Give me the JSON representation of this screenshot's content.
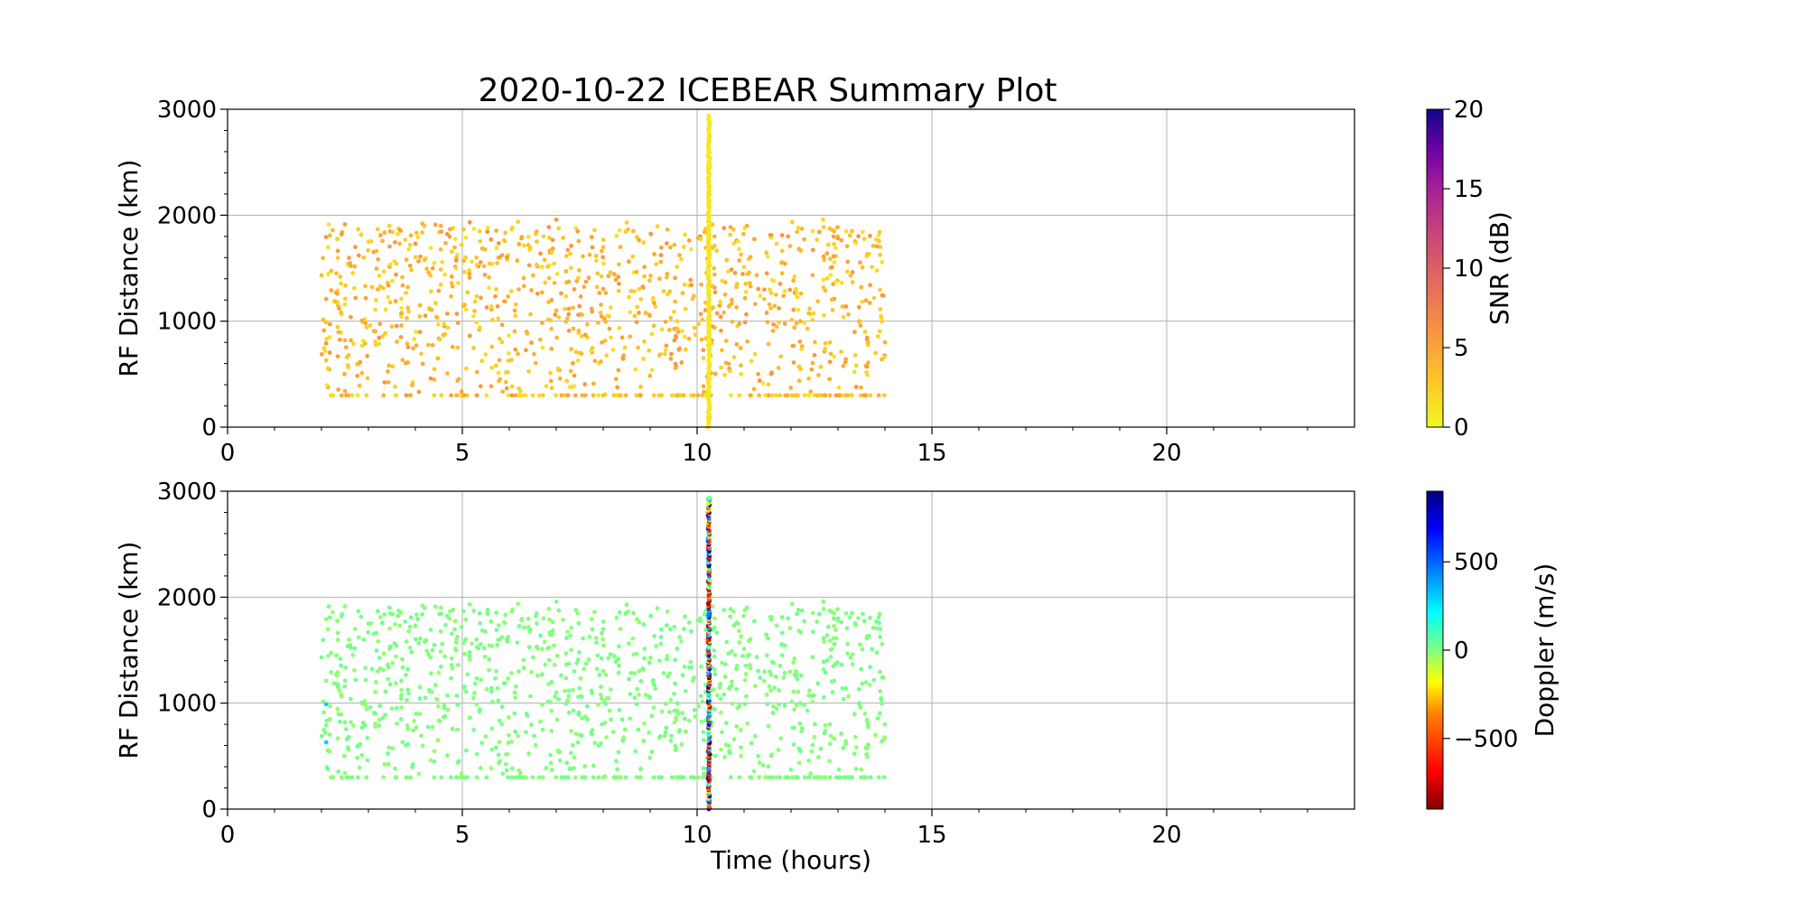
{
  "chart_data": {
    "type": "scatter",
    "title": "2020-10-22 ICEBEAR Summary Plot",
    "xlabel": "Time (hours)",
    "xlim": [
      0,
      24
    ],
    "x_ticks": [
      0,
      5,
      10,
      15,
      20
    ],
    "ylim": [
      0,
      3000
    ],
    "y_ticks": [
      0,
      1000,
      2000,
      3000
    ],
    "grid": true,
    "panels": [
      {
        "ylabel": "RF Distance (km)",
        "color_variable": "snr",
        "colorbar": {
          "label": "SNR (dB)",
          "range": [
            0,
            20
          ],
          "ticks": [
            0,
            5,
            10,
            15,
            20
          ],
          "colormap": "plasma_r"
        }
      },
      {
        "ylabel": "RF Distance (km)",
        "color_variable": "doppler",
        "colorbar": {
          "label": "Doppler (m/s)",
          "range": [
            -900,
            900
          ],
          "ticks": [
            -500,
            0,
            500
          ],
          "colormap": "jet_r"
        }
      }
    ],
    "series": {
      "time_range_hours": [
        2.0,
        14.0
      ],
      "vertical_band_time_hours": 10.25,
      "vertical_band_range_km": [
        0,
        2950
      ],
      "dominant_snr_db": [
        1,
        6
      ],
      "dominant_doppler_ms": 0,
      "points": [
        {
          "t": 2.1,
          "d": 1210,
          "snr": 5,
          "dop": 0
        },
        {
          "t": 2.1,
          "d": 990,
          "snr": 3,
          "dop": 300
        },
        {
          "t": 2.1,
          "d": 790,
          "snr": 6,
          "dop": 0
        },
        {
          "t": 2.1,
          "d": 630,
          "snr": 3,
          "dop": 300
        },
        {
          "t": 2.2,
          "d": 300,
          "snr": 2,
          "dop": 0
        },
        {
          "t": 2.4,
          "d": 1420,
          "snr": 3,
          "dop": 0
        },
        {
          "t": 2.5,
          "d": 820,
          "snr": 4,
          "dop": 0
        },
        {
          "t": 2.9,
          "d": 1600,
          "snr": 3,
          "dop": 0
        },
        {
          "t": 3.0,
          "d": 1750,
          "snr": 2,
          "dop": 0
        },
        {
          "t": 3.2,
          "d": 1300,
          "snr": 4,
          "dop": 0
        },
        {
          "t": 3.5,
          "d": 950,
          "snr": 3,
          "dop": 0
        },
        {
          "t": 3.9,
          "d": 300,
          "snr": 2,
          "dop": 0
        },
        {
          "t": 4.1,
          "d": 1150,
          "snr": 4,
          "dop": 0
        },
        {
          "t": 4.4,
          "d": 300,
          "snr": 2,
          "dop": 0
        },
        {
          "t": 4.6,
          "d": 870,
          "snr": 5,
          "dop": 0
        },
        {
          "t": 4.8,
          "d": 1880,
          "snr": 2,
          "dop": 0
        },
        {
          "t": 5.0,
          "d": 300,
          "snr": 2,
          "dop": 0
        },
        {
          "t": 5.3,
          "d": 1600,
          "snr": 3,
          "dop": 0
        },
        {
          "t": 5.8,
          "d": 450,
          "snr": 5,
          "dop": 0
        },
        {
          "t": 6.2,
          "d": 1300,
          "snr": 4,
          "dop": 0
        },
        {
          "t": 6.5,
          "d": 300,
          "snr": 2,
          "dop": 0
        },
        {
          "t": 7.0,
          "d": 1100,
          "snr": 4,
          "dop": 0
        },
        {
          "t": 7.5,
          "d": 700,
          "snr": 3,
          "dop": 0
        },
        {
          "t": 8.0,
          "d": 1700,
          "snr": 3,
          "dop": 0
        },
        {
          "t": 8.5,
          "d": 1930,
          "snr": 2,
          "dop": 0
        },
        {
          "t": 8.8,
          "d": 300,
          "snr": 2,
          "dop": 0
        },
        {
          "t": 9.2,
          "d": 1400,
          "snr": 4,
          "dop": 0
        },
        {
          "t": 9.6,
          "d": 900,
          "snr": 5,
          "dop": 0
        },
        {
          "t": 10.6,
          "d": 1250,
          "snr": 4,
          "dop": 0
        },
        {
          "t": 10.9,
          "d": 300,
          "snr": 2,
          "dop": 0
        },
        {
          "t": 11.3,
          "d": 500,
          "snr": 5,
          "dop": 0
        },
        {
          "t": 11.8,
          "d": 1550,
          "snr": 3,
          "dop": 0
        },
        {
          "t": 12.2,
          "d": 1000,
          "snr": 4,
          "dop": 0
        },
        {
          "t": 12.5,
          "d": 300,
          "snr": 2,
          "dop": 0
        },
        {
          "t": 12.9,
          "d": 1350,
          "snr": 5,
          "dop": 0
        },
        {
          "t": 13.3,
          "d": 1850,
          "snr": 3,
          "dop": 0
        },
        {
          "t": 13.6,
          "d": 300,
          "snr": 2,
          "dop": 0
        },
        {
          "t": 13.9,
          "d": 1700,
          "snr": 3,
          "dop": 0
        },
        {
          "t": 14.0,
          "d": 800,
          "snr": 4,
          "dop": 0
        }
      ]
    }
  }
}
